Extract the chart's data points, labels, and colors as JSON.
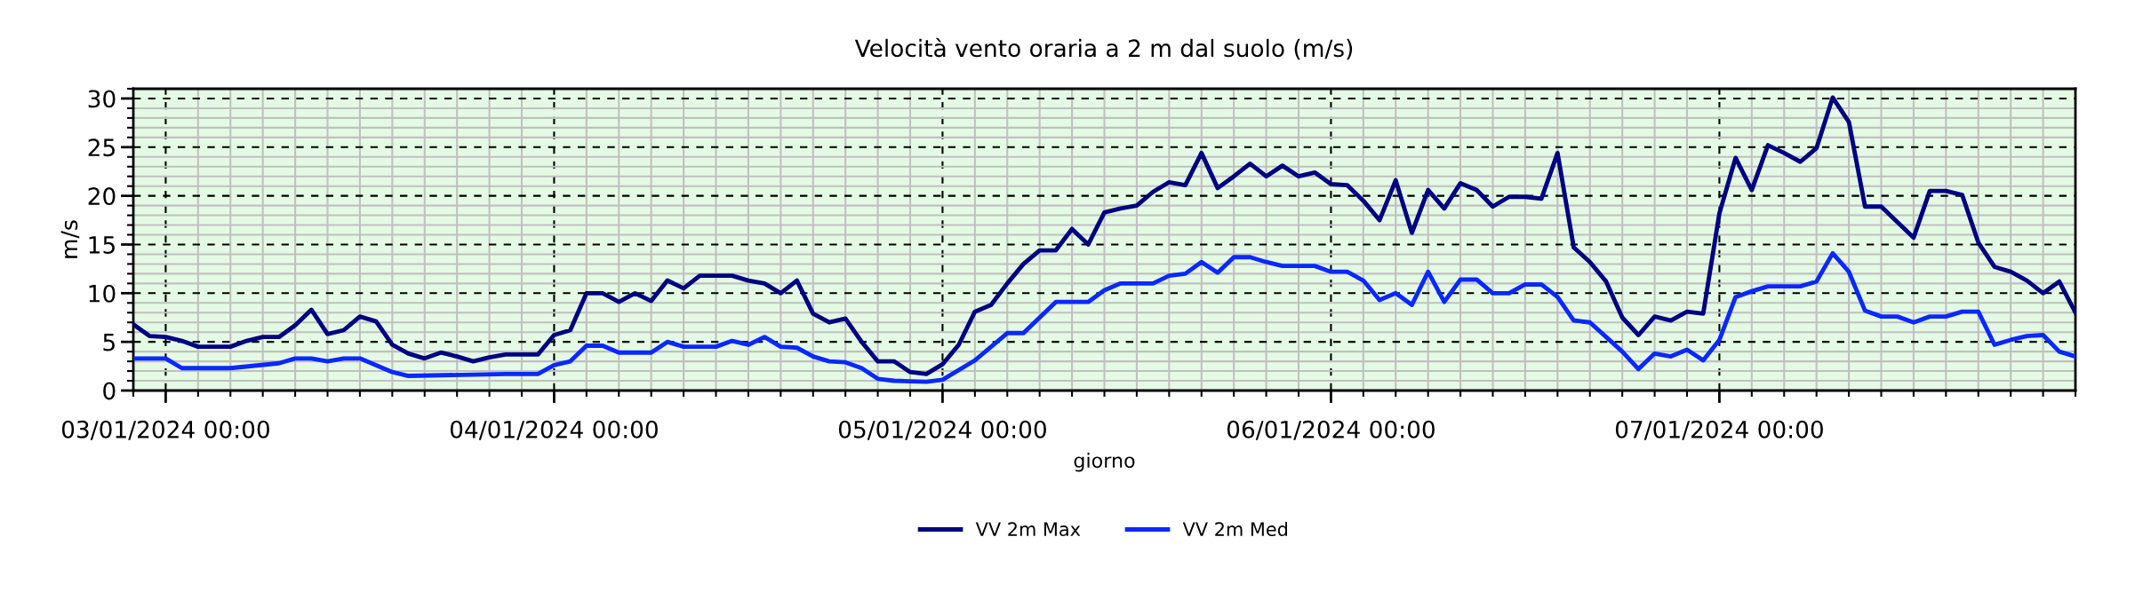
{
  "chart_data": {
    "type": "line",
    "title": "Velocità vento oraria a 2 m dal suolo (m/s)",
    "xlabel": "giorno",
    "ylabel": "m/s",
    "xlim": [
      "2024-01-02T22:00",
      "2024-01-07T22:00"
    ],
    "xticks": [
      {
        "value": "2024-01-03T00:00",
        "label": "03/01/2024 00:00"
      },
      {
        "value": "2024-01-04T00:00",
        "label": "04/01/2024 00:00"
      },
      {
        "value": "2024-01-05T00:00",
        "label": "05/01/2024 00:00"
      },
      {
        "value": "2024-01-06T00:00",
        "label": "06/01/2024 00:00"
      },
      {
        "value": "2024-01-07T00:00",
        "label": "07/01/2024 00:00"
      }
    ],
    "ylim": [
      0,
      31
    ],
    "yticks": [
      0,
      5,
      10,
      15,
      20,
      25,
      30
    ],
    "grid": true,
    "legend": "bottom",
    "marker": "none",
    "line_style": "solid",
    "series": [
      {
        "name": "VV 2m Max",
        "color": "#000080",
        "x": [
          "2024-01-02T22:00",
          "2024-01-02T23:00",
          "2024-01-03T00:00",
          "2024-01-03T01:00",
          "2024-01-03T02:00",
          "2024-01-03T04:00",
          "2024-01-03T05:00",
          "2024-01-03T06:00",
          "2024-01-03T07:00",
          "2024-01-03T08:00",
          "2024-01-03T09:00",
          "2024-01-03T10:00",
          "2024-01-03T11:00",
          "2024-01-03T12:00",
          "2024-01-03T13:00",
          "2024-01-03T14:00",
          "2024-01-03T15:00",
          "2024-01-03T16:00",
          "2024-01-03T17:00",
          "2024-01-03T18:00",
          "2024-01-03T19:00",
          "2024-01-03T20:00",
          "2024-01-03T21:00",
          "2024-01-03T23:00",
          "2024-01-04T00:00",
          "2024-01-04T01:00",
          "2024-01-04T02:00",
          "2024-01-04T03:00",
          "2024-01-04T04:00",
          "2024-01-04T05:00",
          "2024-01-04T06:00",
          "2024-01-04T07:00",
          "2024-01-04T08:00",
          "2024-01-04T09:00",
          "2024-01-04T10:00",
          "2024-01-04T11:00",
          "2024-01-04T12:00",
          "2024-01-04T13:00",
          "2024-01-04T14:00",
          "2024-01-04T15:00",
          "2024-01-04T16:00",
          "2024-01-04T17:00",
          "2024-01-04T18:00",
          "2024-01-04T19:00",
          "2024-01-04T20:00",
          "2024-01-04T21:00",
          "2024-01-04T22:00",
          "2024-01-04T23:00",
          "2024-01-05T00:00",
          "2024-01-05T01:00",
          "2024-01-05T02:00",
          "2024-01-05T03:00",
          "2024-01-05T04:00",
          "2024-01-05T05:00",
          "2024-01-05T06:00",
          "2024-01-05T07:00",
          "2024-01-05T08:00",
          "2024-01-05T09:00",
          "2024-01-05T10:00",
          "2024-01-05T11:00",
          "2024-01-05T12:00",
          "2024-01-05T13:00",
          "2024-01-05T14:00",
          "2024-01-05T15:00",
          "2024-01-05T16:00",
          "2024-01-05T17:00",
          "2024-01-05T18:00",
          "2024-01-05T19:00",
          "2024-01-05T20:00",
          "2024-01-05T21:00",
          "2024-01-05T22:00",
          "2024-01-05T23:00",
          "2024-01-06T00:00",
          "2024-01-06T01:00",
          "2024-01-06T02:00",
          "2024-01-06T03:00",
          "2024-01-06T04:00",
          "2024-01-06T05:00",
          "2024-01-06T06:00",
          "2024-01-06T07:00",
          "2024-01-06T08:00",
          "2024-01-06T09:00",
          "2024-01-06T10:00",
          "2024-01-06T11:00",
          "2024-01-06T12:00",
          "2024-01-06T13:00",
          "2024-01-06T14:00",
          "2024-01-06T15:00",
          "2024-01-06T16:00",
          "2024-01-06T17:00",
          "2024-01-06T18:00",
          "2024-01-06T19:00",
          "2024-01-06T20:00",
          "2024-01-06T21:00",
          "2024-01-06T22:00",
          "2024-01-06T23:00",
          "2024-01-07T00:00",
          "2024-01-07T01:00",
          "2024-01-07T02:00",
          "2024-01-07T03:00",
          "2024-01-07T04:00",
          "2024-01-07T05:00",
          "2024-01-07T06:00",
          "2024-01-07T07:00",
          "2024-01-07T08:00",
          "2024-01-07T09:00",
          "2024-01-07T10:00",
          "2024-01-07T11:00",
          "2024-01-07T12:00",
          "2024-01-07T13:00",
          "2024-01-07T14:00",
          "2024-01-07T15:00",
          "2024-01-07T16:00",
          "2024-01-07T17:00",
          "2024-01-07T18:00",
          "2024-01-07T19:00",
          "2024-01-07T20:00",
          "2024-01-07T21:00",
          "2024-01-07T22:00"
        ],
        "values": [
          6.8,
          5.6,
          5.5,
          5.1,
          4.5,
          4.5,
          5.1,
          5.5,
          5.5,
          6.7,
          8.3,
          5.8,
          6.2,
          7.6,
          7.1,
          4.7,
          3.8,
          3.3,
          3.9,
          3.5,
          3.0,
          3.4,
          3.7,
          3.7,
          5.7,
          6.2,
          10.0,
          10.0,
          9.1,
          10.0,
          9.2,
          11.3,
          10.5,
          11.8,
          11.8,
          11.8,
          11.3,
          11.0,
          10.0,
          11.3,
          7.9,
          7.0,
          7.4,
          5.0,
          3.0,
          3.0,
          1.9,
          1.7,
          2.7,
          4.7,
          8.1,
          8.8,
          11.0,
          13.0,
          14.4,
          14.4,
          16.6,
          15.0,
          18.3,
          18.7,
          19.0,
          20.4,
          21.4,
          21.1,
          24.4,
          20.8,
          22.0,
          23.3,
          22.0,
          23.1,
          22.0,
          22.4,
          21.2,
          21.1,
          19.5,
          17.5,
          21.6,
          16.2,
          20.6,
          18.7,
          21.3,
          20.6,
          18.9,
          19.9,
          19.9,
          19.7,
          24.4,
          14.7,
          13.2,
          11.2,
          7.5,
          5.7,
          7.6,
          7.2,
          8.1,
          7.9,
          18.2,
          23.9,
          20.6,
          25.2,
          24.4,
          23.5,
          24.9,
          30.1,
          27.6,
          18.9,
          18.9,
          17.3,
          15.7,
          20.5,
          20.5,
          20.1,
          15.2,
          12.7,
          12.2,
          11.3,
          10.0,
          11.2,
          8.0
        ]
      },
      {
        "name": "VV 2m Med",
        "color": "#0a28ff",
        "x": [
          "2024-01-02T22:00",
          "2024-01-03T00:00",
          "2024-01-03T01:00",
          "2024-01-03T04:00",
          "2024-01-03T07:00",
          "2024-01-03T08:00",
          "2024-01-03T09:00",
          "2024-01-03T10:00",
          "2024-01-03T11:00",
          "2024-01-03T12:00",
          "2024-01-03T14:00",
          "2024-01-03T15:00",
          "2024-01-03T21:00",
          "2024-01-03T23:00",
          "2024-01-04T00:00",
          "2024-01-04T01:00",
          "2024-01-04T02:00",
          "2024-01-04T03:00",
          "2024-01-04T04:00",
          "2024-01-04T06:00",
          "2024-01-04T07:00",
          "2024-01-04T08:00",
          "2024-01-04T09:00",
          "2024-01-04T10:00",
          "2024-01-04T11:00",
          "2024-01-04T12:00",
          "2024-01-04T13:00",
          "2024-01-04T14:00",
          "2024-01-04T15:00",
          "2024-01-04T16:00",
          "2024-01-04T17:00",
          "2024-01-04T18:00",
          "2024-01-04T19:00",
          "2024-01-04T20:00",
          "2024-01-04T21:00",
          "2024-01-04T23:00",
          "2024-01-05T00:00",
          "2024-01-05T02:00",
          "2024-01-05T04:00",
          "2024-01-05T05:00",
          "2024-01-05T06:00",
          "2024-01-05T07:00",
          "2024-01-05T09:00",
          "2024-01-05T10:00",
          "2024-01-05T11:00",
          "2024-01-05T13:00",
          "2024-01-05T14:00",
          "2024-01-05T15:00",
          "2024-01-05T16:00",
          "2024-01-05T17:00",
          "2024-01-05T18:00",
          "2024-01-05T19:00",
          "2024-01-05T20:00",
          "2024-01-05T21:00",
          "2024-01-05T23:00",
          "2024-01-06T00:00",
          "2024-01-06T01:00",
          "2024-01-06T02:00",
          "2024-01-06T03:00",
          "2024-01-06T04:00",
          "2024-01-06T05:00",
          "2024-01-06T06:00",
          "2024-01-06T07:00",
          "2024-01-06T08:00",
          "2024-01-06T09:00",
          "2024-01-06T10:00",
          "2024-01-06T11:00",
          "2024-01-06T12:00",
          "2024-01-06T13:00",
          "2024-01-06T14:00",
          "2024-01-06T15:00",
          "2024-01-06T16:00",
          "2024-01-06T17:00",
          "2024-01-06T18:00",
          "2024-01-06T19:00",
          "2024-01-06T20:00",
          "2024-01-06T21:00",
          "2024-01-06T22:00",
          "2024-01-06T23:00",
          "2024-01-07T00:00",
          "2024-01-07T01:00",
          "2024-01-07T02:00",
          "2024-01-07T03:00",
          "2024-01-07T05:00",
          "2024-01-07T06:00",
          "2024-01-07T07:00",
          "2024-01-07T08:00",
          "2024-01-07T09:00",
          "2024-01-07T10:00",
          "2024-01-07T11:00",
          "2024-01-07T12:00",
          "2024-01-07T13:00",
          "2024-01-07T14:00",
          "2024-01-07T15:00",
          "2024-01-07T16:00",
          "2024-01-07T17:00",
          "2024-01-07T18:00",
          "2024-01-07T19:00",
          "2024-01-07T20:00",
          "2024-01-07T21:00",
          "2024-01-07T22:00"
        ],
        "values": [
          3.3,
          3.3,
          2.3,
          2.3,
          2.8,
          3.3,
          3.3,
          3.0,
          3.3,
          3.3,
          1.9,
          1.5,
          1.7,
          1.7,
          2.6,
          3.0,
          4.6,
          4.6,
          3.9,
          3.9,
          5.0,
          4.5,
          4.5,
          4.5,
          5.1,
          4.7,
          5.5,
          4.5,
          4.4,
          3.5,
          3.0,
          2.9,
          2.3,
          1.2,
          1.0,
          0.9,
          1.1,
          3.1,
          5.9,
          5.9,
          7.5,
          9.1,
          9.1,
          10.3,
          11.0,
          11.0,
          11.8,
          12.0,
          13.2,
          12.1,
          13.7,
          13.7,
          13.2,
          12.8,
          12.8,
          12.2,
          12.2,
          11.3,
          9.3,
          10.0,
          8.8,
          12.2,
          9.1,
          11.4,
          11.4,
          10.0,
          10.0,
          10.9,
          10.9,
          9.6,
          7.2,
          7.0,
          5.5,
          4.0,
          2.2,
          3.8,
          3.5,
          4.2,
          3.1,
          5.2,
          9.6,
          10.2,
          10.7,
          10.7,
          11.2,
          14.1,
          12.2,
          8.2,
          7.6,
          7.6,
          7.0,
          7.6,
          7.6,
          8.1,
          8.1,
          4.7,
          5.2,
          5.6,
          5.7,
          4.0,
          3.5
        ]
      }
    ]
  }
}
